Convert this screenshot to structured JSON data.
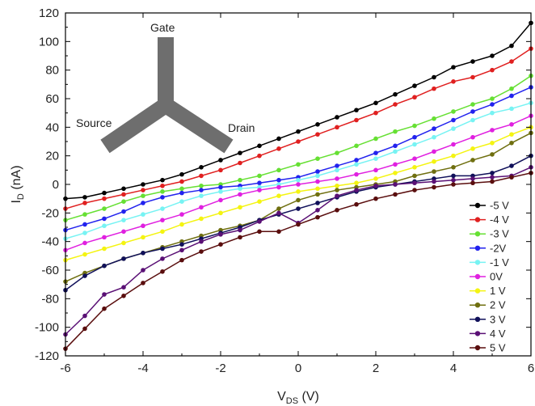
{
  "chart_data": {
    "type": "line",
    "xlabel_main": "V",
    "xlabel_sub": "DS",
    "xlabel_unit": " (V)",
    "ylabel_main": "I",
    "ylabel_sub": "D",
    "ylabel_unit": " (nA)",
    "xlim": [
      -6,
      6
    ],
    "ylim": [
      -120,
      120
    ],
    "x_ticks": [
      -6,
      -4,
      -2,
      0,
      2,
      4,
      6
    ],
    "y_ticks": [
      -120,
      -100,
      -80,
      -60,
      -40,
      -20,
      0,
      20,
      40,
      60,
      80,
      100,
      120
    ],
    "legend_position": "right",
    "inset": {
      "gate_label": "Gate",
      "source_label": "Source",
      "drain_label": "Drain",
      "color": "#6e6e6e"
    },
    "series": [
      {
        "name": "-5 V",
        "color": "#000000",
        "x": [
          -6,
          -5.5,
          -5,
          -4.5,
          -4,
          -3.5,
          -3,
          -2.5,
          -2,
          -1.5,
          -1,
          -0.5,
          0,
          0.5,
          1,
          1.5,
          2,
          2.5,
          3,
          3.5,
          4,
          4.5,
          5,
          5.5,
          6
        ],
        "y": [
          -10,
          -9,
          -6,
          -3,
          0,
          3,
          7,
          12,
          17,
          22,
          27,
          32,
          37,
          42,
          47,
          52,
          57,
          63,
          69,
          75,
          82,
          86,
          90,
          97,
          113
        ]
      },
      {
        "name": "-4 V",
        "color": "#e02020",
        "x": [
          -6,
          -5.5,
          -5,
          -4.5,
          -4,
          -3.5,
          -3,
          -2.5,
          -2,
          -1.5,
          -1,
          -0.5,
          0,
          0.5,
          1,
          1.5,
          2,
          2.5,
          3,
          3.5,
          4,
          4.5,
          5,
          5.5,
          6
        ],
        "y": [
          -17,
          -13,
          -10,
          -7,
          -4,
          -1,
          2,
          6,
          10,
          15,
          20,
          25,
          30,
          35,
          40,
          45,
          50,
          56,
          61,
          67,
          72,
          75,
          80,
          86,
          95
        ]
      },
      {
        "name": "-3 V",
        "color": "#66e033",
        "x": [
          -6,
          -5.5,
          -5,
          -4.5,
          -4,
          -3.5,
          -3,
          -2.5,
          -2,
          -1.5,
          -1,
          -0.5,
          0,
          0.5,
          1,
          1.5,
          2,
          2.5,
          3,
          3.5,
          4,
          4.5,
          5,
          5.5,
          6
        ],
        "y": [
          -25,
          -21,
          -17,
          -12,
          -8,
          -5,
          -3,
          -1,
          0,
          3,
          6,
          10,
          14,
          18,
          22,
          27,
          32,
          37,
          41,
          46,
          51,
          56,
          60,
          67,
          76
        ]
      },
      {
        "name": "-2V",
        "color": "#2222ee",
        "x": [
          -6,
          -5.5,
          -5,
          -4.5,
          -4,
          -3.5,
          -3,
          -2.5,
          -2,
          -1.5,
          -1,
          -0.5,
          0,
          0.5,
          1,
          1.5,
          2,
          2.5,
          3,
          3.5,
          4,
          4.5,
          5,
          5.5,
          6
        ],
        "y": [
          -32,
          -28,
          -24,
          -19,
          -13,
          -9,
          -6,
          -4,
          -2,
          -1,
          1,
          3,
          5,
          9,
          13,
          17,
          22,
          27,
          33,
          39,
          45,
          51,
          56,
          62,
          68
        ]
      },
      {
        "name": "-1 V",
        "color": "#77f3f3",
        "x": [
          -6,
          -5.5,
          -5,
          -4.5,
          -4,
          -3.5,
          -3,
          -2.5,
          -2,
          -1.5,
          -1,
          -0.5,
          0,
          0.5,
          1,
          1.5,
          2,
          2.5,
          3,
          3.5,
          4,
          4.5,
          5,
          5.5,
          6
        ],
        "y": [
          -38,
          -34,
          -29,
          -25,
          -21,
          -17,
          -12,
          -8,
          -5,
          -3,
          -2,
          0,
          3,
          6,
          10,
          14,
          18,
          23,
          28,
          33,
          39,
          45,
          50,
          53,
          57
        ]
      },
      {
        "name": "0V",
        "color": "#e020e0",
        "x": [
          -6,
          -5.5,
          -5,
          -4.5,
          -4,
          -3.5,
          -3,
          -2.5,
          -2,
          -1.5,
          -1,
          -0.5,
          0,
          0.5,
          1,
          1.5,
          2,
          2.5,
          3,
          3.5,
          4,
          4.5,
          5,
          5.5,
          6
        ],
        "y": [
          -46,
          -41,
          -37,
          -33,
          -29,
          -25,
          -21,
          -16,
          -11,
          -7,
          -4,
          -2,
          0,
          2,
          4,
          7,
          10,
          14,
          18,
          23,
          28,
          33,
          38,
          42,
          48
        ]
      },
      {
        "name": "1 V",
        "color": "#f4f411",
        "x": [
          -6,
          -5.5,
          -5,
          -4.5,
          -4,
          -3.5,
          -3,
          -2.5,
          -2,
          -1.5,
          -1,
          -0.5,
          0,
          0.5,
          1,
          1.5,
          2,
          2.5,
          3,
          3.5,
          4,
          4.5,
          5,
          5.5,
          6
        ],
        "y": [
          -53,
          -49,
          -45,
          -41,
          -37,
          -33,
          -28,
          -24,
          -20,
          -16,
          -12,
          -8,
          -5,
          -3,
          -1,
          1,
          4,
          8,
          12,
          16,
          20,
          25,
          29,
          35,
          40
        ]
      },
      {
        "name": "2 V",
        "color": "#6f6f10",
        "x": [
          -6,
          -5.5,
          -5,
          -4.5,
          -4,
          -3.5,
          -3,
          -2.5,
          -2,
          -1.5,
          -1,
          -0.5,
          0,
          0.5,
          1,
          1.5,
          2,
          2.5,
          3,
          3.5,
          4,
          4.5,
          5,
          5.5,
          6
        ],
        "y": [
          -68,
          -62,
          -57,
          -52,
          -48,
          -44,
          -40,
          -36,
          -32,
          -29,
          -25,
          -17,
          -11,
          -7,
          -4,
          -2,
          0,
          2,
          6,
          9,
          12,
          17,
          21,
          29,
          36
        ]
      },
      {
        "name": "3 V",
        "color": "#10105a",
        "x": [
          -6,
          -5.5,
          -5,
          -4.5,
          -4,
          -3.5,
          -3,
          -2.5,
          -2,
          -1.5,
          -1,
          -0.5,
          0,
          0.5,
          1,
          1.5,
          2,
          2.5,
          3,
          3.5,
          4,
          4.5,
          5,
          5.5,
          6
        ],
        "y": [
          -74,
          -64,
          -57,
          -52,
          -48,
          -45,
          -42,
          -38,
          -34,
          -30,
          -25,
          -21,
          -17,
          -13,
          -9,
          -5,
          -2,
          0,
          2,
          4,
          6,
          6,
          8,
          13,
          20
        ]
      },
      {
        "name": "4 V",
        "color": "#5a1075",
        "x": [
          -6,
          -5.5,
          -5,
          -4.5,
          -4,
          -3.5,
          -3,
          -2.5,
          -2,
          -1.5,
          -1,
          -0.5,
          0,
          0.5,
          1,
          1.5,
          2,
          2.5,
          3,
          3.5,
          4,
          4.5,
          5,
          5.5,
          6
        ],
        "y": [
          -105,
          -92,
          -77,
          -72,
          -60,
          -52,
          -46,
          -40,
          -35,
          -32,
          -26,
          -20,
          -27,
          -18,
          -8,
          -4,
          -1,
          0,
          1,
          2,
          3,
          4,
          5,
          6,
          12
        ]
      },
      {
        "name": "5 V",
        "color": "#5a0e0e",
        "x": [
          -6,
          -5.5,
          -5,
          -4.5,
          -4,
          -3.5,
          -3,
          -2.5,
          -2,
          -1.5,
          -1,
          -0.5,
          0,
          0.5,
          1,
          1.5,
          2,
          2.5,
          3,
          3.5,
          4,
          4.5,
          5,
          5.5,
          6
        ],
        "y": [
          -115,
          -101,
          -87,
          -78,
          -69,
          -61,
          -53,
          -47,
          -42,
          -37,
          -33,
          -33,
          -28,
          -23,
          -18,
          -14,
          -10,
          -7,
          -4,
          -2,
          0,
          1,
          2,
          5,
          8
        ]
      }
    ]
  }
}
